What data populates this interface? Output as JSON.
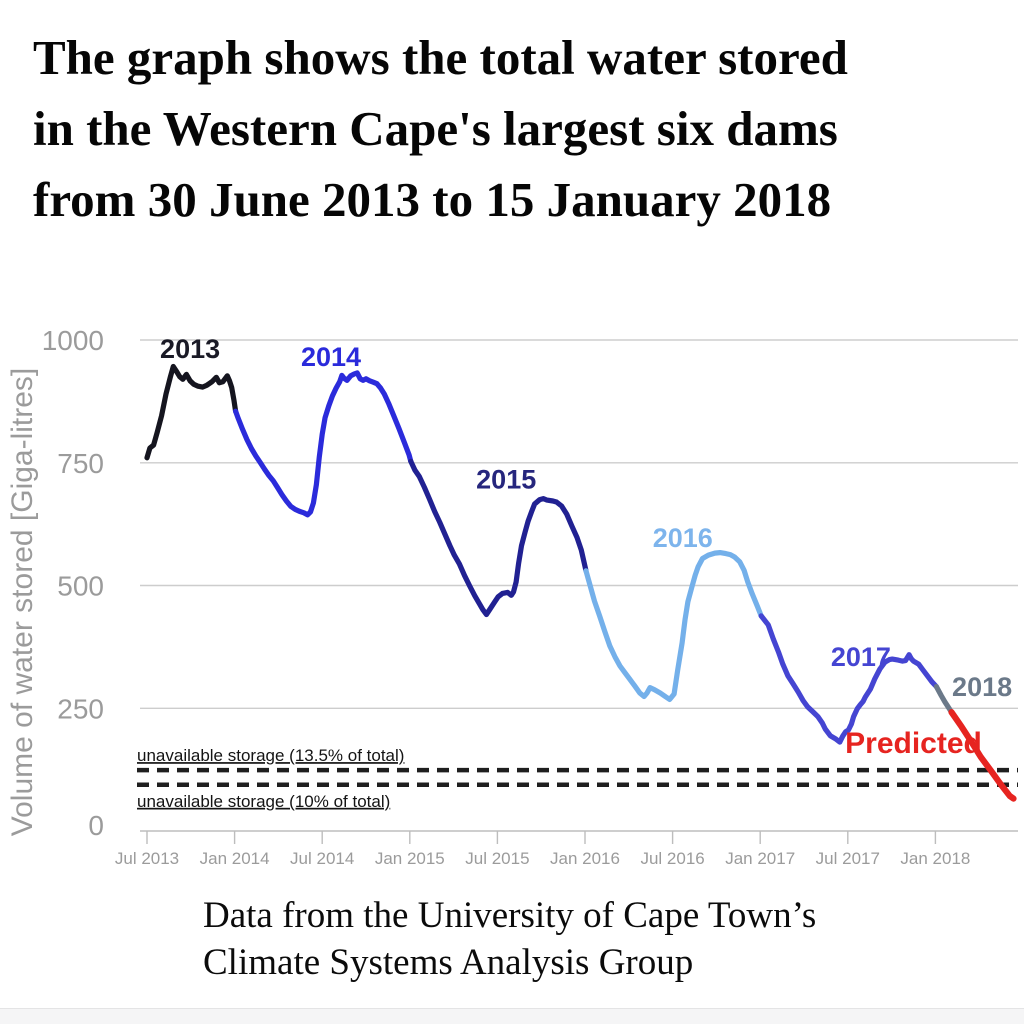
{
  "header": {
    "title": "The graph shows the total water stored\nin the Western Cape's largest six dams\nfrom 30 June 2013 to 15 January 2018"
  },
  "footer": {
    "caption": "Data from the University of Cape Town’s\nClimate Systems Analysis Group"
  },
  "chart_data": {
    "type": "line",
    "title": "",
    "xlabel": "",
    "ylabel": "Volume of water stored [Giga-litres]",
    "ylim": [
      0,
      1050
    ],
    "grid": true,
    "legend_position": "none",
    "y_axis": {
      "ticks": [
        0,
        250,
        500,
        750,
        1000
      ]
    },
    "x_axis": {
      "ticks": [
        {
          "month": 0,
          "label": "Jul 2013"
        },
        {
          "month": 6,
          "label": "Jan 2014"
        },
        {
          "month": 12,
          "label": "Jul 2014"
        },
        {
          "month": 18,
          "label": "Jan 2015"
        },
        {
          "month": 24,
          "label": "Jul 2015"
        },
        {
          "month": 30,
          "label": "Jan 2016"
        },
        {
          "month": 36,
          "label": "Jul 2016"
        },
        {
          "month": 42,
          "label": "Jan 2017"
        },
        {
          "month": 48,
          "label": "Jul 2017"
        },
        {
          "month": 54,
          "label": "Jan 2018"
        }
      ]
    },
    "thresholds": [
      {
        "label": "unavailable storage (13.5% of total)",
        "value_gl": 124,
        "label_position": "above"
      },
      {
        "label": "unavailable storage (10% of total)",
        "value_gl": 94,
        "label_position": "below"
      }
    ],
    "annotations": [
      {
        "text": "2013",
        "month": 2.95,
        "gl": 963,
        "color": "#1a1a26",
        "size": 27
      },
      {
        "text": "2014",
        "month": 12.6,
        "gl": 947,
        "color": "#2b2bdb",
        "size": 27
      },
      {
        "text": "2015",
        "month": 24.6,
        "gl": 698,
        "color": "#26267d",
        "size": 27
      },
      {
        "text": "2016",
        "month": 36.7,
        "gl": 578,
        "color": "#7db4ec",
        "size": 27
      },
      {
        "text": "2017",
        "month": 48.9,
        "gl": 336,
        "color": "#4545d2",
        "size": 27
      },
      {
        "text": "2018",
        "month": 57.2,
        "gl": 275,
        "color": "#6b7989",
        "size": 27
      },
      {
        "text": "Predicted",
        "month": 52.5,
        "gl": 159,
        "color": "#e62420",
        "size": 30
      }
    ],
    "series": [
      {
        "name": "2013",
        "color": "#15151f",
        "width": 5.2,
        "points": [
          [
            0,
            760
          ],
          [
            0.2,
            780
          ],
          [
            0.45,
            786
          ],
          [
            0.7,
            812
          ],
          [
            1.0,
            846
          ],
          [
            1.3,
            890
          ],
          [
            1.6,
            925
          ],
          [
            1.8,
            946
          ],
          [
            2.0,
            937
          ],
          [
            2.25,
            925
          ],
          [
            2.45,
            920
          ],
          [
            2.7,
            930
          ],
          [
            2.95,
            917
          ],
          [
            3.2,
            910
          ],
          [
            3.5,
            906
          ],
          [
            3.8,
            904
          ],
          [
            4.1,
            908
          ],
          [
            4.45,
            915
          ],
          [
            4.75,
            924
          ],
          [
            4.95,
            913
          ],
          [
            5.2,
            915
          ],
          [
            5.5,
            927
          ],
          [
            5.65,
            917
          ],
          [
            5.8,
            903
          ],
          [
            5.95,
            878
          ],
          [
            6.07,
            855
          ]
        ]
      },
      {
        "name": "2014",
        "color": "#2b2bdb",
        "width": 5.2,
        "points": [
          [
            6.07,
            855
          ],
          [
            6.25,
            840
          ],
          [
            6.55,
            818
          ],
          [
            6.85,
            797
          ],
          [
            7.15,
            779
          ],
          [
            7.45,
            764
          ],
          [
            7.75,
            751
          ],
          [
            8.05,
            737
          ],
          [
            8.35,
            724
          ],
          [
            8.65,
            713
          ],
          [
            8.95,
            699
          ],
          [
            9.25,
            685
          ],
          [
            9.55,
            672
          ],
          [
            9.85,
            661
          ],
          [
            10.15,
            655
          ],
          [
            10.45,
            651
          ],
          [
            10.75,
            648
          ],
          [
            11.0,
            644
          ],
          [
            11.2,
            650
          ],
          [
            11.4,
            668
          ],
          [
            11.6,
            706
          ],
          [
            11.8,
            762
          ],
          [
            12.0,
            808
          ],
          [
            12.2,
            842
          ],
          [
            12.45,
            866
          ],
          [
            12.7,
            886
          ],
          [
            12.95,
            902
          ],
          [
            13.2,
            915
          ],
          [
            13.35,
            928
          ],
          [
            13.5,
            922
          ],
          [
            13.7,
            918
          ],
          [
            13.95,
            927
          ],
          [
            14.2,
            931
          ],
          [
            14.4,
            933
          ],
          [
            14.6,
            921
          ],
          [
            14.8,
            918
          ],
          [
            15.0,
            921
          ],
          [
            15.25,
            917
          ],
          [
            15.5,
            914
          ],
          [
            15.75,
            911
          ],
          [
            16.0,
            902
          ],
          [
            16.25,
            890
          ],
          [
            16.55,
            871
          ],
          [
            16.9,
            846
          ],
          [
            17.25,
            820
          ],
          [
            17.6,
            793
          ],
          [
            17.95,
            766
          ],
          [
            18.07,
            753
          ]
        ]
      },
      {
        "name": "2015",
        "color": "#212192",
        "width": 5.2,
        "points": [
          [
            18.07,
            753
          ],
          [
            18.35,
            735
          ],
          [
            18.65,
            722
          ],
          [
            19.0,
            700
          ],
          [
            19.35,
            676
          ],
          [
            19.7,
            651
          ],
          [
            20.05,
            629
          ],
          [
            20.4,
            605
          ],
          [
            20.75,
            581
          ],
          [
            21.05,
            562
          ],
          [
            21.4,
            544
          ],
          [
            21.75,
            520
          ],
          [
            22.1,
            499
          ],
          [
            22.45,
            479
          ],
          [
            22.8,
            461
          ],
          [
            23.0,
            451
          ],
          [
            23.25,
            441
          ],
          [
            23.45,
            450
          ],
          [
            23.8,
            466
          ],
          [
            24.05,
            477
          ],
          [
            24.35,
            484
          ],
          [
            24.7,
            486
          ],
          [
            24.95,
            480
          ],
          [
            25.1,
            487
          ],
          [
            25.28,
            507
          ],
          [
            25.45,
            545
          ],
          [
            25.65,
            581
          ],
          [
            25.9,
            609
          ],
          [
            26.1,
            631
          ],
          [
            26.35,
            651
          ],
          [
            26.55,
            666
          ],
          [
            26.9,
            675
          ],
          [
            27.15,
            677
          ],
          [
            27.4,
            674
          ],
          [
            27.8,
            672
          ],
          [
            28.05,
            670
          ],
          [
            28.4,
            662
          ],
          [
            28.75,
            645
          ],
          [
            29.1,
            621
          ],
          [
            29.45,
            598
          ],
          [
            29.75,
            572
          ],
          [
            30.07,
            530
          ]
        ]
      },
      {
        "name": "2016",
        "color": "#74b0ea",
        "width": 5.2,
        "points": [
          [
            30.07,
            530
          ],
          [
            30.35,
            500
          ],
          [
            30.65,
            468
          ],
          [
            31.0,
            438
          ],
          [
            31.35,
            407
          ],
          [
            31.7,
            377
          ],
          [
            32.05,
            355
          ],
          [
            32.4,
            336
          ],
          [
            32.75,
            322
          ],
          [
            33.05,
            310
          ],
          [
            33.4,
            296
          ],
          [
            33.75,
            281
          ],
          [
            34.05,
            274
          ],
          [
            34.25,
            281
          ],
          [
            34.45,
            292
          ],
          [
            34.75,
            288
          ],
          [
            35.15,
            281
          ],
          [
            35.55,
            273
          ],
          [
            35.8,
            268
          ],
          [
            36.1,
            279
          ],
          [
            36.35,
            328
          ],
          [
            36.65,
            383
          ],
          [
            36.85,
            430
          ],
          [
            37.05,
            467
          ],
          [
            37.3,
            495
          ],
          [
            37.55,
            521
          ],
          [
            37.75,
            538
          ],
          [
            38.05,
            555
          ],
          [
            38.45,
            562
          ],
          [
            38.9,
            566
          ],
          [
            39.25,
            567
          ],
          [
            39.65,
            565
          ],
          [
            39.95,
            563
          ],
          [
            40.25,
            558
          ],
          [
            40.6,
            548
          ],
          [
            40.9,
            531
          ],
          [
            41.15,
            507
          ],
          [
            41.45,
            483
          ],
          [
            41.8,
            458
          ],
          [
            42.07,
            438
          ]
        ]
      },
      {
        "name": "2017",
        "color": "#4545d2",
        "width": 5.2,
        "points": [
          [
            42.07,
            438
          ],
          [
            42.55,
            420
          ],
          [
            42.9,
            391
          ],
          [
            43.25,
            365
          ],
          [
            43.55,
            340
          ],
          [
            43.9,
            316
          ],
          [
            44.25,
            300
          ],
          [
            44.6,
            283
          ],
          [
            44.95,
            265
          ],
          [
            45.25,
            253
          ],
          [
            45.6,
            243
          ],
          [
            45.95,
            233
          ],
          [
            46.25,
            220
          ],
          [
            46.45,
            208
          ],
          [
            46.8,
            194
          ],
          [
            47.15,
            188
          ],
          [
            47.45,
            181
          ],
          [
            47.65,
            193
          ],
          [
            47.85,
            202
          ],
          [
            48.05,
            206
          ],
          [
            48.25,
            218
          ],
          [
            48.4,
            233
          ],
          [
            48.65,
            249
          ],
          [
            48.85,
            257
          ],
          [
            49.05,
            264
          ],
          [
            49.2,
            273
          ],
          [
            49.55,
            289
          ],
          [
            49.85,
            310
          ],
          [
            50.2,
            330
          ],
          [
            50.55,
            344
          ],
          [
            50.85,
            349
          ],
          [
            51.05,
            350
          ],
          [
            51.45,
            348
          ],
          [
            51.75,
            346
          ],
          [
            51.95,
            347
          ],
          [
            52.2,
            359
          ],
          [
            52.35,
            351
          ],
          [
            52.5,
            346
          ],
          [
            52.85,
            340
          ],
          [
            53.15,
            328
          ],
          [
            53.45,
            316
          ],
          [
            53.75,
            304
          ],
          [
            54.07,
            294
          ]
        ]
      },
      {
        "name": "2018",
        "color": "#6b7989",
        "width": 5.2,
        "points": [
          [
            54.07,
            294
          ],
          [
            54.4,
            276
          ],
          [
            54.65,
            263
          ],
          [
            54.95,
            249
          ],
          [
            55.1,
            242
          ]
        ]
      },
      {
        "name": "Predicted",
        "color": "#e62420",
        "width": 6.2,
        "points": [
          [
            55.1,
            242
          ],
          [
            55.8,
            212
          ],
          [
            56.45,
            182
          ],
          [
            57.1,
            151
          ],
          [
            57.8,
            123
          ],
          [
            58.5,
            94
          ],
          [
            59.1,
            71
          ],
          [
            59.35,
            66
          ]
        ]
      }
    ],
    "colors": {
      "grid": "#cdcdcd",
      "axis_line": "#bdbdbd",
      "axis_text": "#9b9b9b",
      "threshold_line": "#1f1f1f",
      "threshold_text": "#141414"
    }
  }
}
